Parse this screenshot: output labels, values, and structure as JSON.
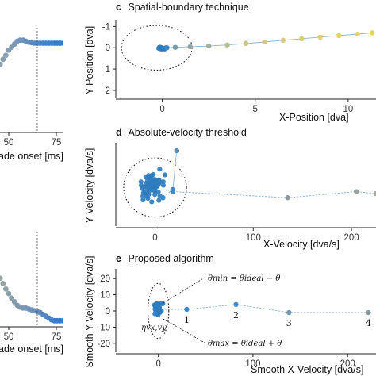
{
  "chart_data": [
    {
      "id": "left-top",
      "type": "scatter",
      "title": "",
      "xlabel": "ade onset [ms]",
      "ylabel": "",
      "x_ticks": [
        50,
        75
      ],
      "xlim": [
        35,
        80
      ],
      "ylim": [
        0,
        1
      ],
      "vline_x": 63,
      "points_x": [
        35,
        36.5,
        38,
        39.5,
        41,
        42.5,
        44,
        45.5,
        47,
        48.5,
        50,
        51.5,
        53,
        54.5,
        56,
        57.5,
        59,
        60.5,
        62,
        63.5,
        65,
        66.5,
        68,
        69.5,
        71,
        72.5,
        74,
        75.5,
        77,
        78.5
      ],
      "points_y": [
        0.25,
        0.3,
        0.36,
        0.42,
        0.49,
        0.55,
        0.61,
        0.66,
        0.71,
        0.75,
        0.8,
        0.83,
        0.86,
        0.89,
        0.9,
        0.9,
        0.89,
        0.88,
        0.875,
        0.87,
        0.87,
        0.87,
        0.87,
        0.87,
        0.87,
        0.87,
        0.87,
        0.87,
        0.87,
        0.87
      ],
      "point_colors": [
        "#9aa8a0",
        "#9aa8a2",
        "#98a7a3",
        "#96a6a4",
        "#94a5a6",
        "#92a4a8",
        "#90a3aa",
        "#8ea2ac",
        "#8aa0ae",
        "#879fb0",
        "#839db2",
        "#7f9bb4",
        "#7b99b6",
        "#7797b8",
        "#7095ba",
        "#6c93bc",
        "#6791be",
        "#618fc0",
        "#5c8dc2",
        "#568ac4",
        "#5088c6",
        "#4b86c8",
        "#4684ca",
        "#4182cc",
        "#3d80cd",
        "#3a7fce",
        "#387ecf",
        "#367dd0",
        "#357cd0",
        "#347cd0"
      ]
    },
    {
      "id": "left-bottom",
      "type": "scatter",
      "title": "",
      "xlabel": "ade onset [ms]",
      "ylabel": "",
      "x_ticks": [
        50,
        75
      ],
      "xlim": [
        35,
        80
      ],
      "ylim": [
        0,
        1
      ],
      "vline_x": 63,
      "points_x": [
        35,
        36.5,
        38,
        39.5,
        41,
        42.5,
        44,
        45.5,
        47,
        48.5,
        50,
        51.5,
        53,
        54.5,
        56,
        57.5,
        59,
        60.5,
        62,
        63.5,
        65,
        66.5,
        68,
        69.5,
        71,
        72.5,
        74,
        75.5,
        77,
        78.5
      ],
      "points_y": [
        0.8,
        0.77,
        0.74,
        0.71,
        0.67,
        0.62,
        0.57,
        0.52,
        0.46,
        0.4,
        0.35,
        0.3,
        0.26,
        0.22,
        0.2,
        0.19,
        0.19,
        0.18,
        0.17,
        0.16,
        0.15,
        0.14,
        0.12,
        0.1,
        0.08,
        0.06,
        0.05,
        0.05,
        0.05,
        0.05
      ],
      "point_colors": [
        "#b6b498",
        "#b2b29a",
        "#aeb09b",
        "#aaae9c",
        "#a6ac9d",
        "#a2aa9e",
        "#9ea8a0",
        "#9aa6a2",
        "#96a4a4",
        "#92a2a6",
        "#8ea0a8",
        "#8a9eaa",
        "#869cac",
        "#829aae",
        "#7e98b0",
        "#7a96b2",
        "#7694b4",
        "#7292b6",
        "#6d90b8",
        "#688eba",
        "#638bbc",
        "#5d89be",
        "#5787c0",
        "#5185c2",
        "#4b83c5",
        "#4581c8",
        "#3f7fca",
        "#3a7ecc",
        "#367dce",
        "#347cd0"
      ]
    },
    {
      "id": "panel-c",
      "type": "scatter",
      "letter": "c",
      "title": "Spatial-boundary technique",
      "xlabel": "X-Position [dva]",
      "ylabel": "Y-Position [dva]",
      "x_ticks": [
        0,
        5,
        10
      ],
      "y_ticks": [
        -1,
        0,
        1,
        2
      ],
      "xlim": [
        -2.5,
        11.5
      ],
      "ylim": [
        -1.2,
        2.3
      ],
      "y_reversed": true,
      "circle": {
        "cx": -0.3,
        "cy": 0,
        "rx": 1.9,
        "ry": 1.05
      },
      "cluster": {
        "cx": 0,
        "cy": 0,
        "n": 12,
        "spread_x": 0.2,
        "spread_y": 0.12
      },
      "path_x": [
        0.25,
        0.7,
        1.5,
        2.5,
        3.5,
        4.5,
        5.5,
        6.5,
        7.5,
        8.5,
        9.5,
        10.5,
        11.3
      ],
      "path_y": [
        0.0,
        -0.02,
        -0.05,
        -0.08,
        -0.13,
        -0.2,
        -0.27,
        -0.35,
        -0.42,
        -0.5,
        -0.57,
        -0.64,
        -0.7
      ],
      "path_colors": [
        "#3f88c8",
        "#6f9bb2",
        "#8ea8a6",
        "#a0b09e",
        "#b5bc94",
        "#c4c48c",
        "#cfc984",
        "#d6cc7c",
        "#dccf74",
        "#e0d16e",
        "#e3d268",
        "#e6d464",
        "#e8d560"
      ]
    },
    {
      "id": "panel-d",
      "type": "scatter",
      "letter": "d",
      "title": "Absolute-velocity threshold",
      "xlabel": "X-Velocity [dva/s]",
      "ylabel": "Y-Velocity [dva/s]",
      "x_ticks": [
        0,
        100,
        200
      ],
      "y_ticks": [],
      "xlim": [
        -40,
        225
      ],
      "ylim": [
        -45,
        35
      ],
      "circle": {
        "cx": 0,
        "cy": -8,
        "rx": 32,
        "ry": 29
      },
      "cluster": {
        "cx": -3,
        "cy": -8,
        "n": 70,
        "spread_x": 11,
        "spread_y": 15
      },
      "path_x": [
        8,
        18,
        22,
        18,
        135,
        205,
        225
      ],
      "path_y": [
        -18,
        -10,
        28,
        -12,
        -18,
        -12,
        -14
      ],
      "path_colors": [
        "#3f88c8",
        "#4a8bc4",
        "#5a91bc",
        "#4588c6",
        "#8a9aa6",
        "#9aa2a0",
        "#a4a89c"
      ]
    },
    {
      "id": "panel-e",
      "type": "scatter",
      "letter": "e",
      "title": "Proposed algorithm",
      "xlabel": "Smooth X-Velocity [dva/s]",
      "ylabel": "Smooth Y-Velocity [dva/s]",
      "x_ticks": [
        0,
        100,
        200
      ],
      "y_ticks": [
        -20,
        -10,
        0,
        10,
        20
      ],
      "xlim": [
        -45,
        230
      ],
      "ylim": [
        -25,
        25
      ],
      "circle": {
        "cx": 0,
        "cy": 0,
        "rx": 11,
        "ry": 17
      },
      "cluster": {
        "cx": 0,
        "cy": 1,
        "n": 40,
        "spread_x": 5,
        "spread_y": 4
      },
      "path_x": [
        30,
        82,
        138,
        222
      ],
      "path_y": [
        1,
        4,
        -1,
        -1
      ],
      "path_colors": [
        "#3f88c8",
        "#4a8bc4",
        "#6f96b2",
        "#8a9ca6"
      ],
      "path_labels": [
        "1",
        "2",
        "3",
        "4"
      ],
      "annotations": {
        "theta_min": "θmin = θideal − θ",
        "theta_max": "θmax = θideal + θ",
        "eta": "ηvx,vy"
      }
    }
  ]
}
